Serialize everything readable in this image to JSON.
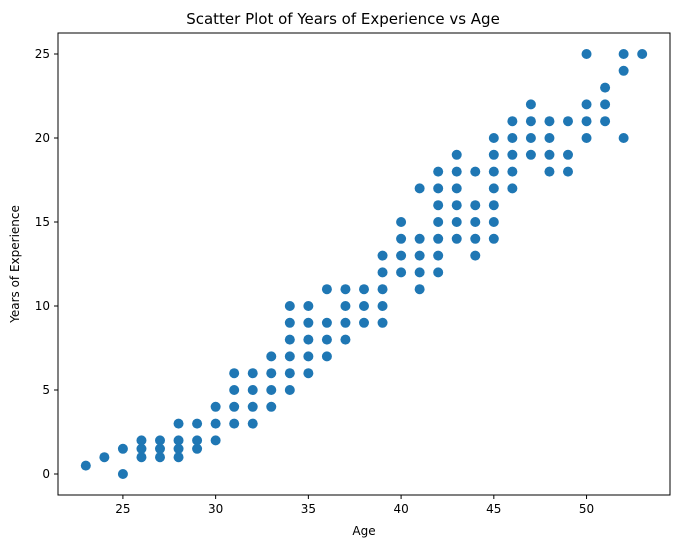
{
  "chart_data": {
    "type": "scatter",
    "title": "Scatter Plot of Years of Experience vs Age",
    "xlabel": "Age",
    "ylabel": "Years of Experience",
    "xlim": [
      21.5,
      54.5
    ],
    "ylim": [
      -1.25,
      26.25
    ],
    "xticks": [
      25,
      30,
      35,
      40,
      45,
      50
    ],
    "yticks": [
      0,
      5,
      10,
      15,
      20,
      25
    ],
    "grid": false,
    "marker_color": "#1f77b4",
    "points": [
      [
        23,
        0.5
      ],
      [
        24,
        1
      ],
      [
        25,
        0
      ],
      [
        25,
        1.5
      ],
      [
        26,
        1
      ],
      [
        26,
        1.5
      ],
      [
        26,
        2
      ],
      [
        27,
        1
      ],
      [
        27,
        1.5
      ],
      [
        27,
        2
      ],
      [
        28,
        1
      ],
      [
        28,
        1.5
      ],
      [
        28,
        2
      ],
      [
        28,
        3
      ],
      [
        29,
        1.5
      ],
      [
        29,
        2
      ],
      [
        29,
        3
      ],
      [
        30,
        2
      ],
      [
        30,
        3
      ],
      [
        30,
        4
      ],
      [
        31,
        3
      ],
      [
        31,
        4
      ],
      [
        31,
        5
      ],
      [
        31,
        6
      ],
      [
        32,
        3
      ],
      [
        32,
        4
      ],
      [
        32,
        5
      ],
      [
        32,
        6
      ],
      [
        33,
        4
      ],
      [
        33,
        5
      ],
      [
        33,
        6
      ],
      [
        33,
        7
      ],
      [
        34,
        5
      ],
      [
        34,
        6
      ],
      [
        34,
        7
      ],
      [
        34,
        8
      ],
      [
        34,
        9
      ],
      [
        34,
        10
      ],
      [
        35,
        6
      ],
      [
        35,
        7
      ],
      [
        35,
        8
      ],
      [
        35,
        9
      ],
      [
        35,
        10
      ],
      [
        36,
        7
      ],
      [
        36,
        8
      ],
      [
        36,
        9
      ],
      [
        36,
        11
      ],
      [
        37,
        8
      ],
      [
        37,
        9
      ],
      [
        37,
        10
      ],
      [
        37,
        11
      ],
      [
        38,
        9
      ],
      [
        38,
        10
      ],
      [
        38,
        11
      ],
      [
        39,
        9
      ],
      [
        39,
        10
      ],
      [
        39,
        11
      ],
      [
        39,
        12
      ],
      [
        39,
        13
      ],
      [
        40,
        12
      ],
      [
        40,
        13
      ],
      [
        40,
        14
      ],
      [
        40,
        15
      ],
      [
        41,
        11
      ],
      [
        41,
        12
      ],
      [
        41,
        13
      ],
      [
        41,
        14
      ],
      [
        41,
        17
      ],
      [
        42,
        12
      ],
      [
        42,
        13
      ],
      [
        42,
        14
      ],
      [
        42,
        15
      ],
      [
        42,
        16
      ],
      [
        42,
        17
      ],
      [
        42,
        18
      ],
      [
        43,
        14
      ],
      [
        43,
        15
      ],
      [
        43,
        16
      ],
      [
        43,
        17
      ],
      [
        43,
        18
      ],
      [
        43,
        19
      ],
      [
        44,
        13
      ],
      [
        44,
        14
      ],
      [
        44,
        15
      ],
      [
        44,
        16
      ],
      [
        44,
        18
      ],
      [
        45,
        14
      ],
      [
        45,
        15
      ],
      [
        45,
        16
      ],
      [
        45,
        17
      ],
      [
        45,
        18
      ],
      [
        45,
        19
      ],
      [
        45,
        20
      ],
      [
        46,
        17
      ],
      [
        46,
        18
      ],
      [
        46,
        19
      ],
      [
        46,
        20
      ],
      [
        46,
        21
      ],
      [
        47,
        19
      ],
      [
        47,
        20
      ],
      [
        47,
        21
      ],
      [
        47,
        22
      ],
      [
        48,
        18
      ],
      [
        48,
        19
      ],
      [
        48,
        20
      ],
      [
        48,
        21
      ],
      [
        49,
        18
      ],
      [
        49,
        19
      ],
      [
        49,
        21
      ],
      [
        50,
        20
      ],
      [
        50,
        21
      ],
      [
        50,
        22
      ],
      [
        50,
        25
      ],
      [
        51,
        21
      ],
      [
        51,
        22
      ],
      [
        51,
        23
      ],
      [
        52,
        20
      ],
      [
        52,
        24
      ],
      [
        52,
        25
      ],
      [
        53,
        25
      ]
    ]
  }
}
